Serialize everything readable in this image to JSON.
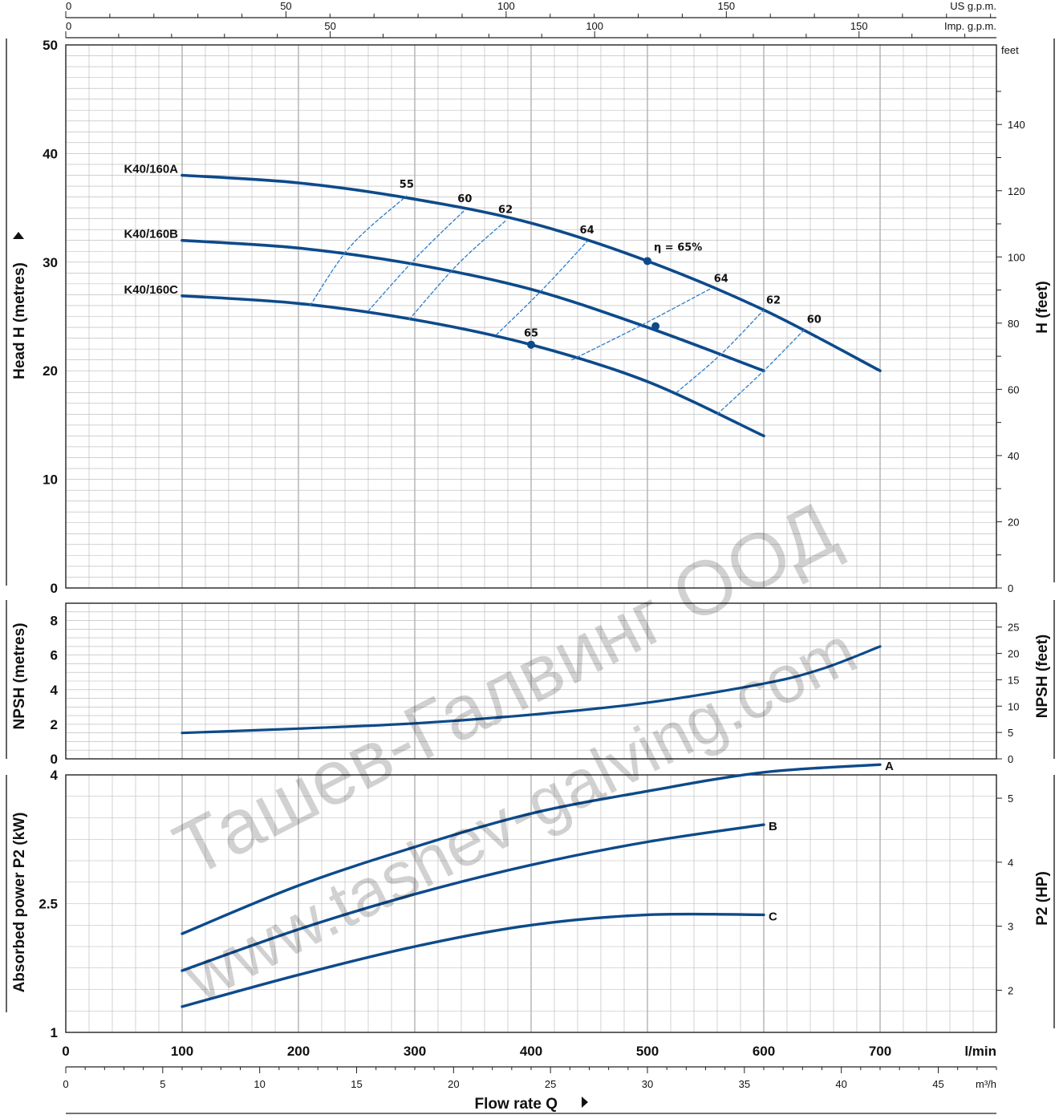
{
  "chart_data": {
    "type": "line",
    "x_axis": {
      "label": "Flow rate Q",
      "units": [
        {
          "unit": "l/min",
          "ticks": [
            0,
            100,
            200,
            300,
            400,
            500,
            600,
            700
          ]
        },
        {
          "unit": "m³/h",
          "ticks": [
            0,
            5,
            10,
            15,
            20,
            25,
            30,
            35,
            40,
            45
          ]
        },
        {
          "unit": "US g.p.m.",
          "ticks": [
            0,
            50,
            100,
            150
          ]
        },
        {
          "unit": "Imp. g.p.m.",
          "ticks": [
            0,
            50,
            100,
            150
          ]
        }
      ],
      "xlim_lmin": [
        0,
        800
      ]
    },
    "head_panel": {
      "ylabel_left": "Head H  (metres)",
      "ylabel_right": "H  (feet)",
      "right_unit": "feet",
      "ylim": [
        0,
        50
      ],
      "yticks_left": [
        0,
        10,
        20,
        30,
        40,
        50
      ],
      "yticks_right": [
        0,
        20,
        40,
        60,
        80,
        100,
        120,
        140
      ],
      "series": [
        {
          "name": "K40/160A",
          "x": [
            100,
            200,
            300,
            400,
            500,
            600,
            700
          ],
          "y": [
            38.0,
            37.3,
            35.8,
            33.6,
            30.1,
            25.6,
            20.0
          ]
        },
        {
          "name": "K40/160B",
          "x": [
            100,
            200,
            300,
            400,
            500,
            600
          ],
          "y": [
            32.0,
            31.3,
            29.8,
            27.5,
            24.0,
            20.0
          ]
        },
        {
          "name": "K40/160C",
          "x": [
            100,
            200,
            300,
            400,
            500,
            600
          ],
          "y": [
            26.9,
            26.2,
            24.7,
            22.4,
            19.0,
            14.0
          ]
        }
      ],
      "efficiency_labels": [
        {
          "text": "55",
          "x": 293,
          "y": 36.1
        },
        {
          "text": "60",
          "x": 343,
          "y": 34.8
        },
        {
          "text": "62",
          "x": 378,
          "y": 33.8
        },
        {
          "text": "64",
          "x": 448,
          "y": 31.9
        },
        {
          "text": "η = 65%",
          "x": 500,
          "y": 30.1
        },
        {
          "text": "64",
          "x": 555,
          "y": 27.6
        },
        {
          "text": "62",
          "x": 600,
          "y": 25.6
        },
        {
          "text": "60",
          "x": 635,
          "y": 23.8
        },
        {
          "text": "65",
          "x": 400,
          "y": 22.4
        }
      ],
      "efficiency_lines": [
        {
          "label": "55",
          "x": [
            210,
            245,
            293
          ],
          "y": [
            26.0,
            31.5,
            36.1
          ]
        },
        {
          "label": "60",
          "x": [
            260,
            302,
            343
          ],
          "y": [
            25.5,
            30.5,
            34.8
          ]
        },
        {
          "label": "62",
          "x": [
            295,
            337,
            378
          ],
          "y": [
            24.7,
            29.8,
            33.8
          ]
        },
        {
          "label": "64",
          "x": [
            370,
            410,
            448
          ],
          "y": [
            23.3,
            27.5,
            31.9
          ]
        },
        {
          "label": "64",
          "x": [
            435,
            495,
            555
          ],
          "y": [
            21.0,
            24.2,
            27.6
          ]
        },
        {
          "label": "62",
          "x": [
            525,
            563,
            600
          ],
          "y": [
            18.0,
            21.5,
            25.6
          ]
        },
        {
          "label": "60",
          "x": [
            560,
            600,
            635
          ],
          "y": [
            16.0,
            20.0,
            23.8
          ]
        }
      ],
      "best_efficiency_points": [
        {
          "x": 500,
          "y": 30.1
        },
        {
          "x": 507,
          "y": 24.1
        },
        {
          "x": 400,
          "y": 22.4
        }
      ]
    },
    "npsh_panel": {
      "ylabel_left": "NPSH  (metres)",
      "ylabel_right": "NPSH  (feet)",
      "ylim": [
        0,
        9
      ],
      "yticks_left": [
        0,
        2,
        4,
        6,
        8
      ],
      "yticks_right": [
        0,
        5,
        10,
        15,
        20,
        25
      ],
      "series": [
        {
          "x": [
            100,
            200,
            300,
            400,
            500,
            600,
            650,
            700
          ],
          "y": [
            1.5,
            1.75,
            2.05,
            2.55,
            3.25,
            4.35,
            5.2,
            6.5
          ]
        }
      ]
    },
    "power_panel": {
      "ylabel_left": "Absorbed power  P2  (kW)",
      "ylabel_right": "P2  (HP)",
      "ylim": [
        1,
        4
      ],
      "yticks_left": [
        1,
        2.5,
        4
      ],
      "yticks_right": [
        2,
        3,
        4,
        5
      ],
      "series": [
        {
          "name": "A",
          "x": [
            100,
            200,
            300,
            400,
            500,
            600,
            700
          ],
          "y": [
            2.15,
            2.71,
            3.16,
            3.55,
            3.81,
            4.03,
            4.12
          ]
        },
        {
          "name": "B",
          "x": [
            100,
            200,
            300,
            400,
            500,
            600
          ],
          "y": [
            1.72,
            2.2,
            2.61,
            2.95,
            3.22,
            3.42
          ]
        },
        {
          "name": "C",
          "x": [
            100,
            200,
            300,
            400,
            500,
            600
          ],
          "y": [
            1.3,
            1.67,
            2.0,
            2.25,
            2.37,
            2.37
          ]
        }
      ]
    },
    "grid": true,
    "colors": {
      "curve": "#0d4a8a",
      "efficiency": "#2a7ccb",
      "grid": "#b5b5b5",
      "axis": "#222222"
    }
  },
  "watermark": {
    "line1": "Ташев-Галвинг ООД",
    "line2": "www.tashev-galving.com"
  }
}
